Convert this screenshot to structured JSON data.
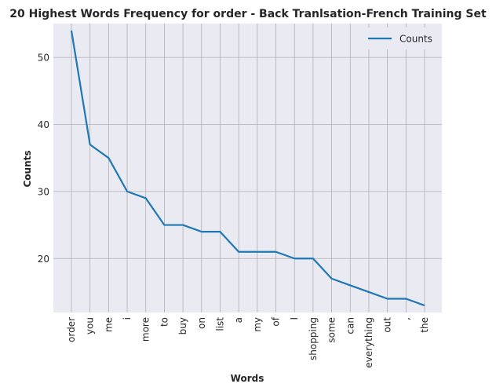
{
  "chart_data": {
    "type": "line",
    "title": "20 Highest Words Frequency for order - Back Tranlsation-French Training Set",
    "xlabel": "Words",
    "ylabel": "Counts",
    "categories": [
      "order",
      "you",
      "me",
      "i",
      "more",
      "to",
      "buy",
      "on",
      "list",
      "a",
      "my",
      "of",
      "I",
      "shopping",
      "some",
      "can",
      "everything",
      "out",
      ",",
      "the"
    ],
    "series": [
      {
        "name": "Counts",
        "values": [
          54,
          37,
          35,
          30,
          29,
          25,
          25,
          24,
          24,
          21,
          21,
          21,
          20,
          20,
          17,
          16,
          15,
          14,
          14,
          13
        ]
      }
    ],
    "yticks": [
      20,
      30,
      40,
      50
    ],
    "ylim": [
      11.95,
      55.05
    ],
    "grid": true,
    "legend": "top-right",
    "colors": {
      "line": "#1f77b4",
      "background": "#eaeaf2",
      "grid": "#b0b0b0"
    }
  }
}
